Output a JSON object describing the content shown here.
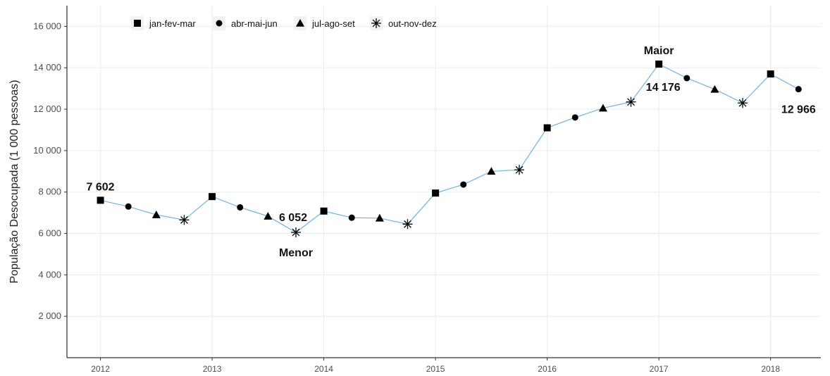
{
  "chart_data": {
    "type": "line",
    "ylabel": "População Desocupada (1 000 pessoas)",
    "xlabel": "",
    "ylim": [
      0,
      17000
    ],
    "xlim": [
      2011.7,
      2018.45
    ],
    "yticks": [
      2000,
      4000,
      6000,
      8000,
      10000,
      12000,
      14000,
      16000
    ],
    "ytick_labels": [
      "2 000",
      "4 000",
      "6 000",
      "8 000",
      "10 000",
      "12 000",
      "14 000",
      "16 000"
    ],
    "xticks": [
      2012,
      2013,
      2014,
      2015,
      2016,
      2017,
      2018
    ],
    "xtick_labels": [
      "2012",
      "2013",
      "2014",
      "2015",
      "2016",
      "2017",
      "2018"
    ],
    "grid": true,
    "legend_position": "top-left",
    "line_color": "#6cb4e4",
    "marker_color": "#000000",
    "legend": [
      {
        "label": "jan-fev-mar",
        "marker": "square"
      },
      {
        "label": "abr-mai-jun",
        "marker": "circle"
      },
      {
        "label": "jul-ago-set",
        "marker": "triangle"
      },
      {
        "label": "out-nov-dez",
        "marker": "asterisk"
      }
    ],
    "points": [
      {
        "x": 2012.0,
        "y": 7602,
        "m": "square"
      },
      {
        "x": 2012.25,
        "y": 7300,
        "m": "circle"
      },
      {
        "x": 2012.5,
        "y": 6900,
        "m": "triangle"
      },
      {
        "x": 2012.75,
        "y": 6650,
        "m": "asterisk"
      },
      {
        "x": 2013.0,
        "y": 7780,
        "m": "square"
      },
      {
        "x": 2013.25,
        "y": 7260,
        "m": "circle"
      },
      {
        "x": 2013.5,
        "y": 6830,
        "m": "triangle"
      },
      {
        "x": 2013.75,
        "y": 6052,
        "m": "asterisk"
      },
      {
        "x": 2014.0,
        "y": 7080,
        "m": "square"
      },
      {
        "x": 2014.25,
        "y": 6760,
        "m": "circle"
      },
      {
        "x": 2014.5,
        "y": 6740,
        "m": "triangle"
      },
      {
        "x": 2014.75,
        "y": 6450,
        "m": "asterisk"
      },
      {
        "x": 2015.0,
        "y": 7950,
        "m": "square"
      },
      {
        "x": 2015.25,
        "y": 8360,
        "m": "circle"
      },
      {
        "x": 2015.5,
        "y": 9000,
        "m": "triangle"
      },
      {
        "x": 2015.75,
        "y": 9070,
        "m": "asterisk"
      },
      {
        "x": 2016.0,
        "y": 11100,
        "m": "square"
      },
      {
        "x": 2016.25,
        "y": 11600,
        "m": "circle"
      },
      {
        "x": 2016.5,
        "y": 12050,
        "m": "triangle"
      },
      {
        "x": 2016.75,
        "y": 12350,
        "m": "asterisk"
      },
      {
        "x": 2017.0,
        "y": 14176,
        "m": "square"
      },
      {
        "x": 2017.25,
        "y": 13500,
        "m": "circle"
      },
      {
        "x": 2017.5,
        "y": 12960,
        "m": "triangle"
      },
      {
        "x": 2017.75,
        "y": 12300,
        "m": "asterisk"
      },
      {
        "x": 2018.0,
        "y": 13700,
        "m": "square"
      },
      {
        "x": 2018.25,
        "y": 12966,
        "m": "circle"
      }
    ],
    "annotations": [
      {
        "text": "7 602",
        "x": 2012.0,
        "y": 7602,
        "pos": "above"
      },
      {
        "text": "6 052",
        "x": 2013.75,
        "y": 6052,
        "pos": "upper-right"
      },
      {
        "text": "Menor",
        "x": 2013.75,
        "y": 6052,
        "pos": "below"
      },
      {
        "text": "Maior",
        "x": 2017.0,
        "y": 14176,
        "pos": "above"
      },
      {
        "text": "14 176",
        "x": 2017.0,
        "y": 14176,
        "pos": "lower-left"
      },
      {
        "text": "12 966",
        "x": 2018.25,
        "y": 12966,
        "pos": "below"
      }
    ]
  }
}
